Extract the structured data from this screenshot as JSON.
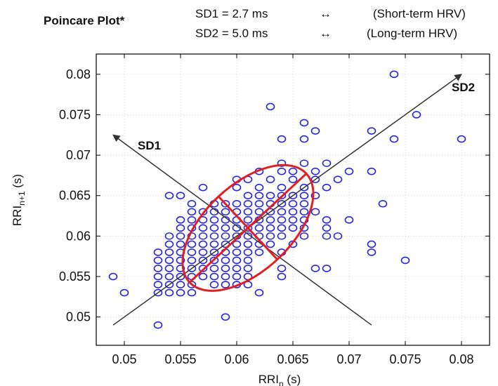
{
  "header": {
    "title": "Poincare Plot*",
    "sd1_text": "SD1 = 2.7 ms",
    "sd2_text": "SD2 = 5.0 ms",
    "arrow_symbol": "↔",
    "sd1_desc": "(Short-term HRV)",
    "sd2_desc": "(Long-term HRV)"
  },
  "chart_data": {
    "type": "scatter",
    "title": "Poincare Plot*",
    "xlabel_main": "RRI",
    "xlabel_sub": "n",
    "xlabel_unit": "(s)",
    "ylabel_main": "RRI",
    "ylabel_sub": "n+1",
    "ylabel_unit": "(s)",
    "xlim": [
      0.0475,
      0.0825
    ],
    "ylim": [
      0.0465,
      0.0825
    ],
    "xticks": [
      "0.05",
      "0.055",
      "0.06",
      "0.065",
      "0.07",
      "0.075",
      "0.08"
    ],
    "yticks": [
      "0.05",
      "0.055",
      "0.06",
      "0.065",
      "0.07",
      "0.075",
      "0.08"
    ],
    "grid": true,
    "marker_color": "#2222ee",
    "ellipse_color": "#e02020",
    "axis_line_color": "#333333",
    "sd1_label": "SD1",
    "sd2_label": "SD2",
    "sd1_ms": 2.7,
    "sd2_ms": 5.0,
    "center": [
      0.061,
      0.061
    ],
    "sd2_axis": {
      "from": [
        0.049,
        0.049
      ],
      "to": [
        0.08,
        0.08
      ]
    },
    "sd1_axis": {
      "from": [
        0.072,
        0.049
      ],
      "to": [
        0.049,
        0.0725
      ]
    },
    "points": [
      [
        0.049,
        0.055
      ],
      [
        0.05,
        0.053
      ],
      [
        0.053,
        0.049
      ],
      [
        0.059,
        0.05
      ],
      [
        0.062,
        0.053
      ],
      [
        0.053,
        0.053
      ],
      [
        0.054,
        0.053
      ],
      [
        0.055,
        0.053
      ],
      [
        0.056,
        0.053
      ],
      [
        0.053,
        0.054
      ],
      [
        0.054,
        0.054
      ],
      [
        0.055,
        0.054
      ],
      [
        0.056,
        0.054
      ],
      [
        0.058,
        0.054
      ],
      [
        0.059,
        0.054
      ],
      [
        0.06,
        0.054
      ],
      [
        0.061,
        0.054
      ],
      [
        0.053,
        0.055
      ],
      [
        0.054,
        0.055
      ],
      [
        0.055,
        0.055
      ],
      [
        0.056,
        0.055
      ],
      [
        0.057,
        0.055
      ],
      [
        0.058,
        0.055
      ],
      [
        0.059,
        0.055
      ],
      [
        0.06,
        0.055
      ],
      [
        0.061,
        0.055
      ],
      [
        0.064,
        0.055
      ],
      [
        0.053,
        0.056
      ],
      [
        0.054,
        0.056
      ],
      [
        0.055,
        0.056
      ],
      [
        0.056,
        0.056
      ],
      [
        0.057,
        0.056
      ],
      [
        0.058,
        0.056
      ],
      [
        0.059,
        0.056
      ],
      [
        0.06,
        0.056
      ],
      [
        0.061,
        0.056
      ],
      [
        0.064,
        0.056
      ],
      [
        0.067,
        0.056
      ],
      [
        0.068,
        0.056
      ],
      [
        0.053,
        0.057
      ],
      [
        0.054,
        0.057
      ],
      [
        0.055,
        0.057
      ],
      [
        0.056,
        0.057
      ],
      [
        0.057,
        0.057
      ],
      [
        0.058,
        0.057
      ],
      [
        0.059,
        0.057
      ],
      [
        0.06,
        0.057
      ],
      [
        0.061,
        0.057
      ],
      [
        0.075,
        0.057
      ],
      [
        0.053,
        0.058
      ],
      [
        0.054,
        0.058
      ],
      [
        0.055,
        0.058
      ],
      [
        0.056,
        0.058
      ],
      [
        0.057,
        0.058
      ],
      [
        0.058,
        0.058
      ],
      [
        0.059,
        0.058
      ],
      [
        0.06,
        0.058
      ],
      [
        0.061,
        0.058
      ],
      [
        0.062,
        0.058
      ],
      [
        0.064,
        0.058
      ],
      [
        0.072,
        0.058
      ],
      [
        0.054,
        0.059
      ],
      [
        0.055,
        0.059
      ],
      [
        0.056,
        0.059
      ],
      [
        0.057,
        0.059
      ],
      [
        0.058,
        0.059
      ],
      [
        0.059,
        0.059
      ],
      [
        0.06,
        0.059
      ],
      [
        0.061,
        0.059
      ],
      [
        0.062,
        0.059
      ],
      [
        0.063,
        0.059
      ],
      [
        0.065,
        0.059
      ],
      [
        0.072,
        0.059
      ],
      [
        0.054,
        0.06
      ],
      [
        0.055,
        0.06
      ],
      [
        0.056,
        0.06
      ],
      [
        0.057,
        0.06
      ],
      [
        0.058,
        0.06
      ],
      [
        0.059,
        0.06
      ],
      [
        0.06,
        0.06
      ],
      [
        0.061,
        0.06
      ],
      [
        0.062,
        0.06
      ],
      [
        0.063,
        0.06
      ],
      [
        0.064,
        0.06
      ],
      [
        0.066,
        0.06
      ],
      [
        0.068,
        0.06
      ],
      [
        0.069,
        0.06
      ],
      [
        0.055,
        0.061
      ],
      [
        0.056,
        0.061
      ],
      [
        0.057,
        0.061
      ],
      [
        0.058,
        0.061
      ],
      [
        0.059,
        0.061
      ],
      [
        0.06,
        0.061
      ],
      [
        0.061,
        0.061
      ],
      [
        0.062,
        0.061
      ],
      [
        0.063,
        0.061
      ],
      [
        0.064,
        0.061
      ],
      [
        0.065,
        0.061
      ],
      [
        0.066,
        0.061
      ],
      [
        0.068,
        0.061
      ],
      [
        0.055,
        0.062
      ],
      [
        0.056,
        0.062
      ],
      [
        0.057,
        0.062
      ],
      [
        0.058,
        0.062
      ],
      [
        0.059,
        0.062
      ],
      [
        0.06,
        0.062
      ],
      [
        0.061,
        0.062
      ],
      [
        0.062,
        0.062
      ],
      [
        0.063,
        0.062
      ],
      [
        0.064,
        0.062
      ],
      [
        0.065,
        0.062
      ],
      [
        0.066,
        0.062
      ],
      [
        0.068,
        0.062
      ],
      [
        0.07,
        0.062
      ],
      [
        0.056,
        0.063
      ],
      [
        0.057,
        0.063
      ],
      [
        0.058,
        0.063
      ],
      [
        0.059,
        0.063
      ],
      [
        0.06,
        0.063
      ],
      [
        0.061,
        0.063
      ],
      [
        0.062,
        0.063
      ],
      [
        0.063,
        0.063
      ],
      [
        0.064,
        0.063
      ],
      [
        0.065,
        0.063
      ],
      [
        0.066,
        0.063
      ],
      [
        0.067,
        0.063
      ],
      [
        0.056,
        0.064
      ],
      [
        0.058,
        0.064
      ],
      [
        0.059,
        0.064
      ],
      [
        0.06,
        0.064
      ],
      [
        0.061,
        0.064
      ],
      [
        0.062,
        0.064
      ],
      [
        0.063,
        0.064
      ],
      [
        0.064,
        0.064
      ],
      [
        0.065,
        0.064
      ],
      [
        0.066,
        0.064
      ],
      [
        0.073,
        0.064
      ],
      [
        0.054,
        0.065
      ],
      [
        0.055,
        0.065
      ],
      [
        0.061,
        0.065
      ],
      [
        0.062,
        0.065
      ],
      [
        0.063,
        0.065
      ],
      [
        0.064,
        0.065
      ],
      [
        0.065,
        0.065
      ],
      [
        0.066,
        0.065
      ],
      [
        0.067,
        0.065
      ],
      [
        0.057,
        0.066
      ],
      [
        0.06,
        0.066
      ],
      [
        0.062,
        0.066
      ],
      [
        0.064,
        0.066
      ],
      [
        0.066,
        0.066
      ],
      [
        0.068,
        0.066
      ],
      [
        0.06,
        0.067
      ],
      [
        0.061,
        0.067
      ],
      [
        0.063,
        0.067
      ],
      [
        0.065,
        0.067
      ],
      [
        0.067,
        0.067
      ],
      [
        0.069,
        0.067
      ],
      [
        0.062,
        0.068
      ],
      [
        0.064,
        0.068
      ],
      [
        0.065,
        0.068
      ],
      [
        0.067,
        0.068
      ],
      [
        0.07,
        0.068
      ],
      [
        0.072,
        0.068
      ],
      [
        0.064,
        0.069
      ],
      [
        0.066,
        0.069
      ],
      [
        0.068,
        0.069
      ],
      [
        0.064,
        0.072
      ],
      [
        0.066,
        0.072
      ],
      [
        0.067,
        0.073
      ],
      [
        0.066,
        0.074
      ],
      [
        0.063,
        0.076
      ],
      [
        0.072,
        0.073
      ],
      [
        0.074,
        0.072
      ],
      [
        0.076,
        0.075
      ],
      [
        0.08,
        0.072
      ],
      [
        0.074,
        0.08
      ]
    ]
  }
}
